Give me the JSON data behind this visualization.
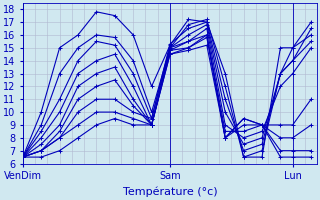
{
  "xlabel": "Température (°c)",
  "bg_color": "#d0e8f0",
  "grid_color": "#b0b8d0",
  "line_color": "#0000bb",
  "ylim": [
    6,
    18.5
  ],
  "xlim": [
    0,
    48
  ],
  "yticks": [
    6,
    7,
    8,
    9,
    10,
    11,
    12,
    13,
    14,
    15,
    16,
    17,
    18
  ],
  "xtick_positions": [
    0,
    24,
    44
  ],
  "xtick_labels": [
    "VenDim",
    "Sam",
    "Lun"
  ],
  "series": [
    {
      "x": [
        0,
        3,
        6,
        9,
        12,
        15,
        18,
        21,
        24,
        27,
        30,
        33,
        36,
        39,
        42,
        44,
        47
      ],
      "y": [
        6.5,
        10,
        15,
        16,
        17.8,
        17.5,
        16,
        12,
        15.2,
        17.2,
        17,
        13,
        6.5,
        6.5,
        15,
        15,
        17
      ]
    },
    {
      "x": [
        0,
        3,
        6,
        9,
        12,
        15,
        18,
        21,
        24,
        27,
        30,
        33,
        36,
        39,
        42,
        44,
        47
      ],
      "y": [
        6.5,
        9,
        13,
        15,
        16,
        15.8,
        14,
        10,
        15.0,
        16.8,
        17.2,
        12,
        6.5,
        7,
        13,
        14,
        16.5
      ]
    },
    {
      "x": [
        0,
        3,
        6,
        9,
        12,
        15,
        18,
        21,
        24,
        27,
        30,
        33,
        36,
        39,
        42,
        44,
        47
      ],
      "y": [
        6.5,
        8.5,
        11,
        14,
        15.5,
        15.2,
        13,
        9.5,
        15.3,
        16.5,
        17,
        11,
        7,
        7.5,
        13,
        15,
        16
      ]
    },
    {
      "x": [
        0,
        3,
        6,
        9,
        12,
        15,
        18,
        21,
        24,
        27,
        30,
        33,
        36,
        39,
        42,
        44,
        47
      ],
      "y": [
        6.5,
        8,
        10,
        13,
        14,
        14.5,
        12,
        9,
        15.0,
        16,
        16.8,
        10,
        7.5,
        8,
        13,
        14,
        15.5
      ]
    },
    {
      "x": [
        0,
        3,
        6,
        9,
        12,
        15,
        18,
        21,
        24,
        27,
        30,
        33,
        36,
        39,
        42,
        44,
        47
      ],
      "y": [
        6.5,
        7.5,
        9,
        12,
        13,
        13.5,
        11,
        9,
        14.8,
        15.5,
        16.5,
        9,
        8,
        8.5,
        12,
        13,
        15
      ]
    },
    {
      "x": [
        0,
        3,
        6,
        9,
        12,
        15,
        18,
        21,
        24,
        27,
        30,
        33,
        36,
        39,
        42,
        44,
        47
      ],
      "y": [
        6.5,
        7,
        8.5,
        11,
        12,
        12.5,
        10.5,
        9,
        14.5,
        15,
        16,
        8.5,
        8.5,
        9,
        9,
        9,
        11
      ]
    },
    {
      "x": [
        0,
        3,
        6,
        9,
        12,
        15,
        18,
        21,
        24,
        27,
        30,
        33,
        36,
        39,
        42,
        44,
        47
      ],
      "y": [
        6.5,
        7,
        8,
        10,
        11,
        11,
        10,
        9.5,
        15,
        15.5,
        16,
        8,
        9,
        9,
        8,
        8,
        9
      ]
    },
    {
      "x": [
        0,
        3,
        6,
        9,
        12,
        15,
        18,
        21,
        24,
        27,
        30,
        33,
        36,
        39,
        42,
        44,
        47
      ],
      "y": [
        6.5,
        7,
        8,
        9,
        10,
        10,
        9.5,
        9,
        14.8,
        15,
        15.8,
        8,
        9.5,
        9,
        7,
        7,
        7
      ]
    },
    {
      "x": [
        0,
        3,
        6,
        9,
        12,
        15,
        18,
        21,
        24,
        27,
        30,
        33,
        36,
        39,
        42,
        44,
        47
      ],
      "y": [
        6.5,
        6.5,
        7,
        8,
        9,
        9.5,
        9,
        9,
        14.5,
        14.8,
        15.2,
        8,
        9.5,
        9,
        6.5,
        6.5,
        6.5
      ]
    }
  ],
  "dashed_series_idx": []
}
